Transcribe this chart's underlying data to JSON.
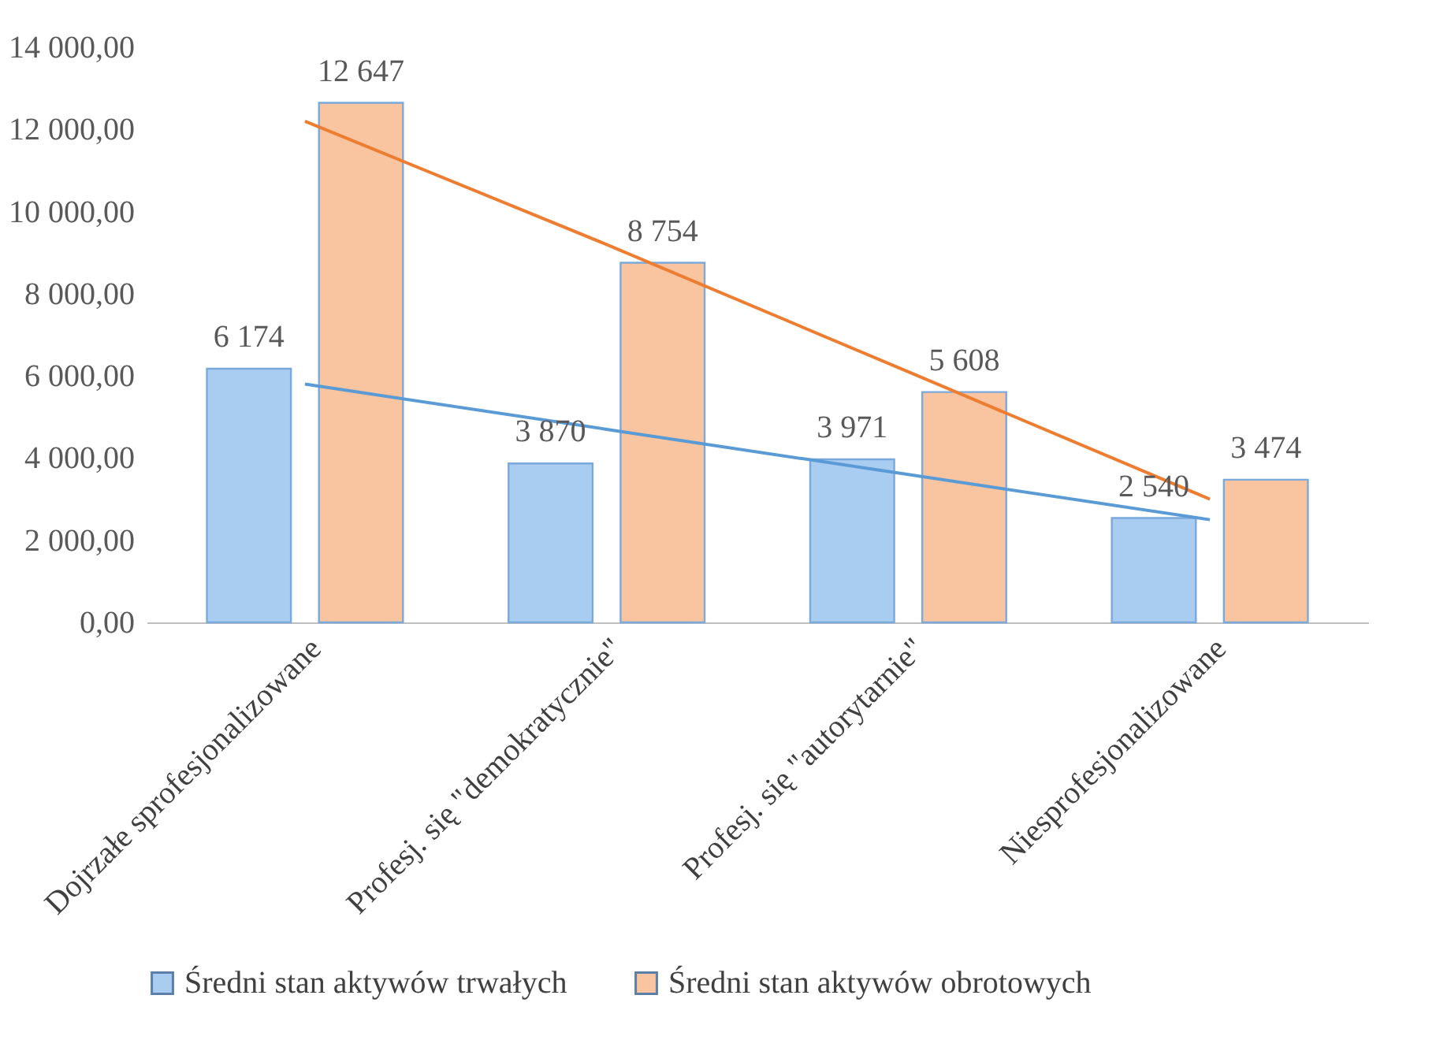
{
  "chart_data": {
    "type": "bar",
    "categories": [
      "Dojrzałe sprofesjonalizowane",
      "Profesj. się \"demokratycznie\"",
      "Profesj. się \"autorytarnie\"",
      "Niesprofesjonalizowane"
    ],
    "series": [
      {
        "name": "Średni stan aktywów trwałych",
        "color": "#a9cdf0",
        "values": [
          6174,
          3870,
          3971,
          2540
        ],
        "value_labels": [
          "6 174",
          "3 870",
          "3 971",
          "2 540"
        ]
      },
      {
        "name": "Średni stan aktywów obrotowych",
        "color": "#f9c4a0",
        "values": [
          12647,
          8754,
          5608,
          3474
        ],
        "value_labels": [
          "12 647",
          "8 754",
          "5 608",
          "3 474"
        ]
      },
      {
        "type": "line",
        "color": "#5b9bd5",
        "values": [
          5800,
          4700,
          3600,
          2500
        ]
      },
      {
        "type": "line",
        "color": "#ed7d31",
        "values": [
          12200,
          9200,
          6100,
          3000
        ]
      }
    ],
    "ylim": [
      0,
      14000
    ],
    "yticks": [
      {
        "value": 0,
        "label": "0,00"
      },
      {
        "value": 2000,
        "label": "2 000,00"
      },
      {
        "value": 4000,
        "label": "4 000,00"
      },
      {
        "value": 6000,
        "label": "6 000,00"
      },
      {
        "value": 8000,
        "label": "8 000,00"
      },
      {
        "value": 10000,
        "label": "10 000,00"
      },
      {
        "value": 12000,
        "label": "12 000,00"
      },
      {
        "value": 14000,
        "label": "14 000,00"
      }
    ],
    "grid": false,
    "legend": "bottom"
  }
}
